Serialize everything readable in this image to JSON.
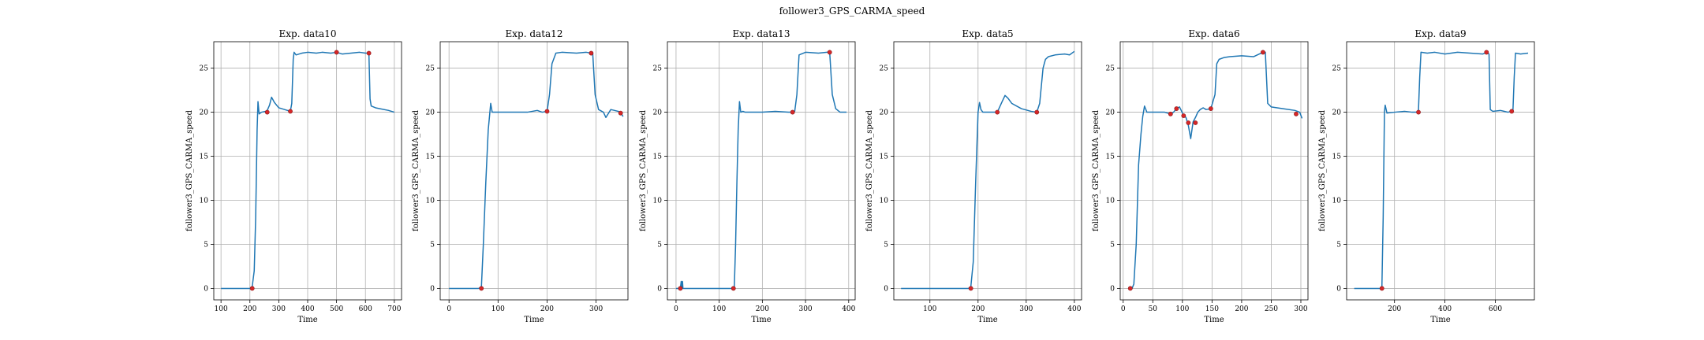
{
  "figure_title": "follower3_GPS_CARMA_speed",
  "chart_data": [
    {
      "type": "line",
      "title": "Exp. data10",
      "xlabel": "Time",
      "ylabel": "follower3_GPS_CARMA_speed",
      "xlim": [
        75,
        725
      ],
      "ylim": [
        -1.3,
        28
      ],
      "xticks": [
        100,
        200,
        300,
        400,
        500,
        600,
        700
      ],
      "yticks": [
        0,
        5,
        10,
        15,
        20,
        25
      ],
      "grid": true,
      "series": [
        {
          "x": [
            100,
            150,
            200,
            208,
            215,
            220,
            225,
            228,
            232,
            240,
            255,
            260,
            268,
            275,
            285,
            300,
            320,
            340,
            345,
            350,
            353,
            360,
            380,
            400,
            430,
            450,
            480,
            500,
            520,
            550,
            580,
            600,
            612,
            616,
            620,
            635,
            650,
            680,
            700
          ],
          "y": [
            0,
            0,
            0,
            0.2,
            2,
            8,
            18,
            21.2,
            19.8,
            20,
            20.1,
            20.2,
            20.8,
            21.7,
            21.1,
            20.5,
            20.3,
            20.1,
            21,
            26,
            26.8,
            26.5,
            26.7,
            26.8,
            26.7,
            26.8,
            26.7,
            26.8,
            26.6,
            26.7,
            26.8,
            26.7,
            26.7,
            21.5,
            20.7,
            20.5,
            20.4,
            20.2,
            20
          ]
        }
      ],
      "markers": {
        "x": [
          208,
          260,
          340,
          500,
          612
        ],
        "y": [
          0,
          20,
          20.1,
          26.8,
          26.7
        ]
      }
    },
    {
      "type": "line",
      "title": "Exp. data12",
      "xlabel": "Time",
      "ylabel": "follower3_GPS_CARMA_speed",
      "xlim": [
        -18,
        365
      ],
      "ylim": [
        -1.3,
        28
      ],
      "xticks": [
        0,
        100,
        200,
        300
      ],
      "yticks": [
        0,
        5,
        10,
        15,
        20,
        25
      ],
      "grid": true,
      "series": [
        {
          "x": [
            0,
            30,
            60,
            66,
            70,
            75,
            80,
            85,
            88,
            92,
            100,
            130,
            160,
            180,
            190,
            200,
            205,
            210,
            218,
            230,
            260,
            280,
            290,
            293,
            298,
            305,
            315,
            320,
            330,
            345,
            350,
            355
          ],
          "y": [
            0,
            0,
            0,
            0.1,
            5,
            12,
            18,
            21,
            20,
            20,
            20,
            20,
            20,
            20.2,
            20,
            20.1,
            22,
            25.5,
            26.7,
            26.8,
            26.7,
            26.8,
            26.7,
            26.8,
            22,
            20.3,
            20,
            19.4,
            20.3,
            20.1,
            20,
            19.5
          ]
        }
      ],
      "markers": {
        "x": [
          66,
          200,
          290,
          350
        ],
        "y": [
          0,
          20.1,
          26.7,
          19.9
        ]
      }
    },
    {
      "type": "line",
      "title": "Exp. data13",
      "xlabel": "Time",
      "ylabel": "follower3_GPS_CARMA_speed",
      "xlim": [
        -20,
        415
      ],
      "ylim": [
        -1.3,
        28
      ],
      "xticks": [
        0,
        100,
        200,
        300,
        400
      ],
      "yticks": [
        0,
        5,
        10,
        15,
        20,
        25
      ],
      "grid": true,
      "series": [
        {
          "x": [
            0,
            10,
            12,
            14,
            15,
            16,
            18,
            30,
            60,
            100,
            130,
            135,
            138,
            141,
            144,
            147,
            150,
            155,
            160,
            200,
            230,
            260,
            270,
            275,
            280,
            285,
            300,
            330,
            350,
            356,
            362,
            370,
            380,
            395
          ],
          "y": [
            0,
            0,
            0.8,
            0,
            0.8,
            0,
            0,
            0,
            0,
            0,
            0,
            0.1,
            5,
            12,
            18,
            21.2,
            20,
            20.1,
            20,
            20,
            20.1,
            20,
            20,
            20.1,
            22,
            26.5,
            26.8,
            26.7,
            26.8,
            26.8,
            22,
            20.4,
            20,
            20
          ]
        }
      ],
      "markers": {
        "x": [
          10,
          133,
          270,
          356
        ],
        "y": [
          0,
          0,
          20,
          26.8
        ]
      }
    },
    {
      "type": "line",
      "title": "Exp. data5",
      "xlabel": "Time",
      "ylabel": "follower3_GPS_CARMA_speed",
      "xlim": [
        25,
        415
      ],
      "ylim": [
        -1.3,
        28
      ],
      "xticks": [
        100,
        200,
        300,
        400
      ],
      "yticks": [
        0,
        5,
        10,
        15,
        20,
        25
      ],
      "grid": true,
      "series": [
        {
          "x": [
            40,
            100,
            150,
            180,
            185,
            190,
            195,
            200,
            203,
            206,
            210,
            220,
            240,
            250,
            256,
            262,
            270,
            290,
            310,
            322,
            328,
            335,
            340,
            346,
            360,
            380,
            390,
            400
          ],
          "y": [
            0,
            0,
            0,
            0,
            0.2,
            3,
            12,
            20,
            21.1,
            20.3,
            20,
            20,
            20,
            21.2,
            21.9,
            21.6,
            21,
            20.4,
            20.1,
            20,
            21,
            25,
            26,
            26.3,
            26.5,
            26.6,
            26.5,
            26.9
          ]
        }
      ],
      "markers": {
        "x": [
          185,
          240,
          322
        ],
        "y": [
          0,
          20,
          20
        ]
      }
    },
    {
      "type": "line",
      "title": "Exp. data6",
      "xlabel": "Time",
      "ylabel": "follower3_GPS_CARMA_speed",
      "xlim": [
        -5,
        312
      ],
      "ylim": [
        -1.3,
        28
      ],
      "xticks": [
        0,
        50,
        100,
        150,
        200,
        250,
        300
      ],
      "yticks": [
        0,
        5,
        10,
        15,
        20,
        25
      ],
      "grid": true,
      "series": [
        {
          "x": [
            10,
            15,
            18,
            22,
            26,
            30,
            33,
            36,
            40,
            50,
            60,
            70,
            80,
            85,
            90,
            95,
            98,
            102,
            106,
            110,
            114,
            118,
            122,
            126,
            130,
            135,
            140,
            148,
            155,
            158,
            162,
            170,
            180,
            200,
            220,
            236,
            240,
            244,
            250,
            270,
            290,
            298,
            302
          ],
          "y": [
            0,
            0,
            0.5,
            5,
            14,
            17.5,
            19.5,
            20.7,
            20,
            20,
            20,
            20,
            19.8,
            20,
            20.4,
            20.6,
            20.2,
            19.6,
            19.4,
            18.5,
            17,
            18.9,
            19.4,
            20,
            20.3,
            20.5,
            20.3,
            20.4,
            22,
            25.5,
            26,
            26.2,
            26.3,
            26.4,
            26.3,
            26.8,
            26.8,
            21,
            20.6,
            20.4,
            20.2,
            20,
            19.3
          ]
        }
      ],
      "markers": {
        "x": [
          12,
          80,
          90,
          102,
          110,
          122,
          148,
          236,
          292
        ],
        "y": [
          0,
          19.8,
          20.4,
          19.6,
          18.8,
          18.8,
          20.4,
          26.8,
          19.8
        ]
      }
    },
    {
      "type": "line",
      "title": "Exp. data9",
      "xlabel": "Time",
      "ylabel": "follower3_GPS_CARMA_speed",
      "xlim": [
        10,
        755
      ],
      "ylim": [
        -1.3,
        28
      ],
      "xticks": [
        200,
        400,
        600
      ],
      "yticks": [
        0,
        5,
        10,
        15,
        20,
        25
      ],
      "grid": true,
      "series": [
        {
          "x": [
            40,
            80,
            120,
            145,
            150,
            155,
            160,
            163,
            170,
            200,
            240,
            270,
            290,
            295,
            300,
            305,
            330,
            360,
            400,
            450,
            500,
            550,
            565,
            575,
            580,
            590,
            620,
            650,
            665,
            670,
            675,
            680,
            700,
            730
          ],
          "y": [
            0,
            0,
            0,
            0,
            0.2,
            8,
            20,
            20.8,
            19.9,
            20,
            20.1,
            20,
            20,
            20.2,
            24,
            26.8,
            26.7,
            26.8,
            26.6,
            26.8,
            26.7,
            26.6,
            26.8,
            26.6,
            20.3,
            20.1,
            20.2,
            20,
            20.1,
            20.3,
            24,
            26.7,
            26.6,
            26.7
          ]
        }
      ],
      "markers": {
        "x": [
          150,
          295,
          565,
          665
        ],
        "y": [
          0,
          20,
          26.8,
          20.1
        ]
      }
    }
  ]
}
